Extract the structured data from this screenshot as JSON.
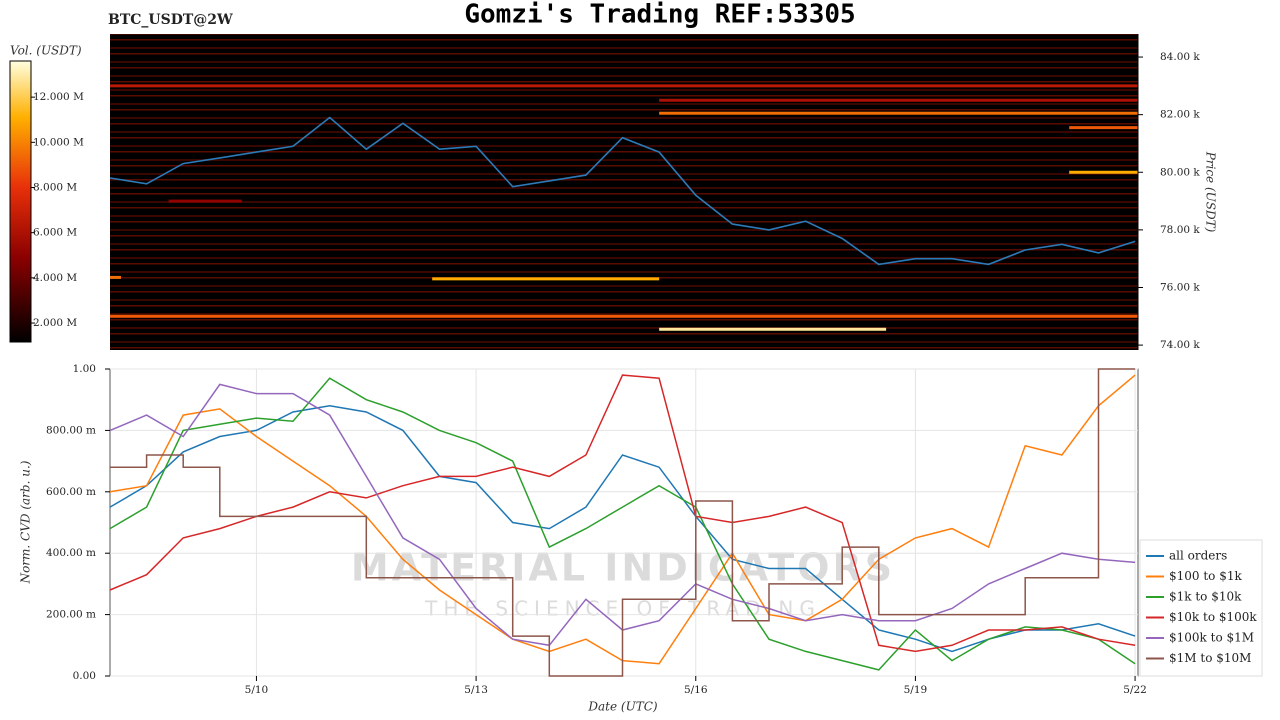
{
  "chart_data": [
    {
      "type": "heatmap",
      "title": "Gomzi's Trading REF:53305",
      "subtitle": "BTC_USDT@2W",
      "colorbar_label": "Vol. (USDT)",
      "y_label": "Price (USDT)",
      "vlim": [
        1160000,
        13600000
      ],
      "vticks": [
        {
          "value": 2000000,
          "label": "2.000 M"
        },
        {
          "value": 4000000,
          "label": "4.000 M"
        },
        {
          "value": 6000000,
          "label": "6.000 M"
        },
        {
          "value": 8000000,
          "label": "8.000 M"
        },
        {
          "value": 10000000,
          "label": "10.000 M"
        },
        {
          "value": 12000000,
          "label": "12.000 M"
        }
      ],
      "xlim": [
        8,
        22.04
      ],
      "ylim": [
        73830,
        84800
      ],
      "yticks": [
        {
          "value": 74000,
          "label": "74.00 k"
        },
        {
          "value": 76000,
          "label": "76.00 k"
        },
        {
          "value": 78000,
          "label": "78.00 k"
        },
        {
          "value": 80000,
          "label": "80.00 k"
        },
        {
          "value": 82000,
          "label": "82.00 k"
        },
        {
          "value": 84000,
          "label": "84.00 k"
        }
      ],
      "levels": [
        {
          "price": 75000,
          "volume": 9000000,
          "from": 8,
          "to": 22.04
        },
        {
          "price": 74550,
          "volume": 12800000,
          "from": 15.5,
          "to": 18.6
        },
        {
          "price": 76300,
          "volume": 11000000,
          "from": 12.4,
          "to": 15.5
        },
        {
          "price": 82500,
          "volume": 6000000,
          "from": 15.5,
          "to": 22.04
        },
        {
          "price": 82050,
          "volume": 9500000,
          "from": 15.5,
          "to": 22.04
        },
        {
          "price": 80000,
          "volume": 11000000,
          "from": 21.1,
          "to": 22.04
        },
        {
          "price": 81550,
          "volume": 9000000,
          "from": 21.1,
          "to": 22.04
        },
        {
          "price": 83000,
          "volume": 6500000,
          "from": 8,
          "to": 22.04
        },
        {
          "price": 79000,
          "volume": 5000000,
          "from": 8.8,
          "to": 9.8
        },
        {
          "price": 76350,
          "volume": 9500000,
          "from": 8,
          "to": 8.15
        }
      ],
      "x": [
        8,
        8.5,
        9,
        9.5,
        10,
        10.5,
        11,
        11.5,
        12,
        12.5,
        13,
        13.5,
        14,
        14.5,
        15,
        15.5,
        16,
        16.5,
        17,
        17.5,
        18,
        18.5,
        19,
        19.5,
        20,
        20.5,
        21,
        21.5,
        22
      ],
      "series": [
        {
          "name": "price",
          "color": "#2b7bba",
          "values": [
            79800,
            79600,
            80300,
            80500,
            80700,
            80900,
            81900,
            80800,
            81700,
            80800,
            80900,
            79500,
            79700,
            79900,
            81200,
            80700,
            79200,
            78200,
            78000,
            78300,
            77700,
            76800,
            77000,
            77000,
            76800,
            77300,
            77500,
            77200,
            77600
          ]
        }
      ]
    },
    {
      "type": "line",
      "y_label": "Norm. CVD (arb. u.)",
      "x_label": "Date (UTC)",
      "watermark": "MATERIAL INDICATORS",
      "watermark_sub": "THE SCIENCE OF TRADING",
      "xlim": [
        8,
        22.04
      ],
      "xticks": [
        {
          "value": 10,
          "label": "5/10"
        },
        {
          "value": 13,
          "label": "5/13"
        },
        {
          "value": 16,
          "label": "5/16"
        },
        {
          "value": 19,
          "label": "5/19"
        },
        {
          "value": 22,
          "label": "5/22"
        }
      ],
      "ylim": [
        0,
        1
      ],
      "yticks": [
        {
          "value": 0,
          "label": "0.00"
        },
        {
          "value": 0.2,
          "label": "200.00 m"
        },
        {
          "value": 0.4,
          "label": "400.00 m"
        },
        {
          "value": 0.6,
          "label": "600.00 m"
        },
        {
          "value": 0.8,
          "label": "800.00 m"
        },
        {
          "value": 1,
          "label": "1.00"
        }
      ],
      "grid": true,
      "legend": "lower right",
      "x": [
        8,
        8.5,
        9,
        9.5,
        10,
        10.5,
        11,
        11.5,
        12,
        12.5,
        13,
        13.5,
        14,
        14.5,
        15,
        15.5,
        16,
        16.5,
        17,
        17.5,
        18,
        18.5,
        19,
        19.5,
        20,
        20.5,
        21,
        21.5,
        22
      ],
      "series": [
        {
          "name": "all orders",
          "color": "#1f77b4",
          "values": [
            0.55,
            0.62,
            0.73,
            0.78,
            0.8,
            0.86,
            0.88,
            0.86,
            0.8,
            0.65,
            0.63,
            0.5,
            0.48,
            0.55,
            0.72,
            0.68,
            0.52,
            0.38,
            0.35,
            0.35,
            0.25,
            0.15,
            0.12,
            0.08,
            0.12,
            0.15,
            0.15,
            0.17,
            0.13
          ]
        },
        {
          "name": "$100 to $1k",
          "color": "#ff7f0e",
          "values": [
            0.6,
            0.62,
            0.85,
            0.87,
            0.78,
            0.7,
            0.62,
            0.52,
            0.38,
            0.28,
            0.2,
            0.12,
            0.08,
            0.12,
            0.05,
            0.04,
            0.22,
            0.4,
            0.2,
            0.18,
            0.25,
            0.38,
            0.45,
            0.48,
            0.42,
            0.75,
            0.72,
            0.88,
            0.98
          ]
        },
        {
          "name": "$1k to $10k",
          "color": "#2ca02c",
          "values": [
            0.48,
            0.55,
            0.8,
            0.82,
            0.84,
            0.83,
            0.97,
            0.9,
            0.86,
            0.8,
            0.76,
            0.7,
            0.42,
            0.48,
            0.55,
            0.62,
            0.55,
            0.3,
            0.12,
            0.08,
            0.05,
            0.02,
            0.15,
            0.05,
            0.12,
            0.16,
            0.15,
            0.12,
            0.04
          ]
        },
        {
          "name": "$10k to $100k",
          "color": "#d62728",
          "values": [
            0.28,
            0.33,
            0.45,
            0.48,
            0.52,
            0.55,
            0.6,
            0.58,
            0.62,
            0.65,
            0.65,
            0.68,
            0.65,
            0.72,
            0.98,
            0.97,
            0.52,
            0.5,
            0.52,
            0.55,
            0.5,
            0.1,
            0.08,
            0.1,
            0.15,
            0.15,
            0.16,
            0.12,
            0.1
          ]
        },
        {
          "name": "$100k to $1M",
          "color": "#9467bd",
          "values": [
            0.8,
            0.85,
            0.78,
            0.95,
            0.92,
            0.92,
            0.85,
            0.65,
            0.45,
            0.38,
            0.22,
            0.12,
            0.1,
            0.25,
            0.15,
            0.18,
            0.3,
            0.25,
            0.22,
            0.18,
            0.2,
            0.18,
            0.18,
            0.22,
            0.3,
            0.35,
            0.4,
            0.38,
            0.37
          ]
        },
        {
          "name": "$1M to $10M",
          "color": "#8c564b",
          "step": true,
          "values": [
            0.68,
            0.72,
            0.68,
            0.52,
            0.52,
            0.52,
            0.52,
            0.32,
            0.32,
            0.32,
            0.32,
            0.13,
            0.0,
            0.0,
            0.25,
            0.25,
            0.57,
            0.18,
            0.3,
            0.3,
            0.42,
            0.2,
            0.2,
            0.2,
            0.2,
            0.32,
            0.32,
            1.0,
            1.0
          ]
        }
      ]
    }
  ]
}
